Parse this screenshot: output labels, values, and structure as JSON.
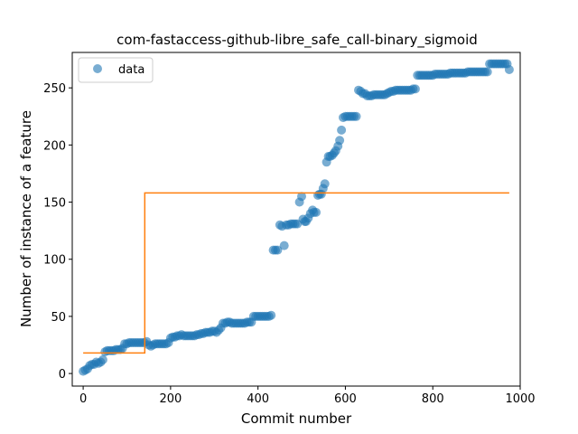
{
  "chart_data": {
    "type": "scatter",
    "title": "com-fastaccess-github-libre_safe_call-binary_sigmoid",
    "xlabel": "Commit number",
    "ylabel": "Number of instance of a feature",
    "xlim": [
      -25,
      1000
    ],
    "ylim": [
      -11,
      281
    ],
    "xticks": [
      0,
      200,
      400,
      600,
      800,
      1000
    ],
    "xtick_labels": [
      "0",
      "200",
      "400",
      "600",
      "800",
      "1000"
    ],
    "yticks": [
      0,
      50,
      100,
      150,
      200,
      250
    ],
    "ytick_labels": [
      "0",
      "50",
      "100",
      "150",
      "200",
      "250"
    ],
    "grid": false,
    "legend": {
      "position": "top-left",
      "entries": [
        "data"
      ]
    },
    "series": [
      {
        "name": "data",
        "kind": "scatter",
        "color": "#1f77b4",
        "alpha": 0.6,
        "points": [
          [
            0,
            2
          ],
          [
            5,
            3
          ],
          [
            10,
            4
          ],
          [
            15,
            7
          ],
          [
            20,
            8
          ],
          [
            25,
            8
          ],
          [
            30,
            10
          ],
          [
            35,
            9
          ],
          [
            40,
            10
          ],
          [
            45,
            12
          ],
          [
            50,
            19
          ],
          [
            55,
            20
          ],
          [
            60,
            20
          ],
          [
            65,
            20
          ],
          [
            70,
            20
          ],
          [
            75,
            21
          ],
          [
            80,
            21
          ],
          [
            85,
            21
          ],
          [
            90,
            22
          ],
          [
            95,
            26
          ],
          [
            100,
            26
          ],
          [
            105,
            27
          ],
          [
            110,
            27
          ],
          [
            115,
            27
          ],
          [
            120,
            27
          ],
          [
            125,
            27
          ],
          [
            130,
            27
          ],
          [
            135,
            27
          ],
          [
            140,
            27
          ],
          [
            145,
            28
          ],
          [
            150,
            25
          ],
          [
            155,
            24
          ],
          [
            160,
            25
          ],
          [
            165,
            26
          ],
          [
            170,
            26
          ],
          [
            175,
            26
          ],
          [
            180,
            26
          ],
          [
            185,
            26
          ],
          [
            190,
            26
          ],
          [
            195,
            27
          ],
          [
            200,
            31
          ],
          [
            205,
            32
          ],
          [
            210,
            32
          ],
          [
            215,
            33
          ],
          [
            220,
            33
          ],
          [
            225,
            34
          ],
          [
            230,
            33
          ],
          [
            235,
            33
          ],
          [
            240,
            33
          ],
          [
            245,
            33
          ],
          [
            250,
            33
          ],
          [
            255,
            33
          ],
          [
            260,
            34
          ],
          [
            265,
            34
          ],
          [
            270,
            35
          ],
          [
            275,
            35
          ],
          [
            280,
            36
          ],
          [
            285,
            36
          ],
          [
            290,
            36
          ],
          [
            295,
            37
          ],
          [
            300,
            37
          ],
          [
            305,
            36
          ],
          [
            310,
            38
          ],
          [
            315,
            40
          ],
          [
            320,
            44
          ],
          [
            325,
            44
          ],
          [
            330,
            45
          ],
          [
            335,
            45
          ],
          [
            340,
            44
          ],
          [
            345,
            44
          ],
          [
            350,
            44
          ],
          [
            355,
            44
          ],
          [
            360,
            44
          ],
          [
            365,
            44
          ],
          [
            370,
            44
          ],
          [
            375,
            45
          ],
          [
            380,
            45
          ],
          [
            385,
            45
          ],
          [
            390,
            50
          ],
          [
            395,
            50
          ],
          [
            400,
            50
          ],
          [
            405,
            50
          ],
          [
            410,
            50
          ],
          [
            415,
            50
          ],
          [
            420,
            50
          ],
          [
            425,
            50
          ],
          [
            430,
            51
          ],
          [
            435,
            108
          ],
          [
            440,
            108
          ],
          [
            445,
            108
          ],
          [
            450,
            130
          ],
          [
            455,
            129
          ],
          [
            460,
            112
          ],
          [
            465,
            130
          ],
          [
            470,
            130
          ],
          [
            475,
            131
          ],
          [
            480,
            131
          ],
          [
            485,
            131
          ],
          [
            490,
            131
          ],
          [
            495,
            150
          ],
          [
            500,
            155
          ],
          [
            503,
            135
          ],
          [
            507,
            133
          ],
          [
            510,
            133
          ],
          [
            515,
            136
          ],
          [
            520,
            140
          ],
          [
            525,
            143
          ],
          [
            528,
            141
          ],
          [
            533,
            141
          ],
          [
            537,
            156
          ],
          [
            541,
            157
          ],
          [
            545,
            157
          ],
          [
            549,
            162
          ],
          [
            553,
            166
          ],
          [
            557,
            185
          ],
          [
            561,
            190
          ],
          [
            565,
            190
          ],
          [
            570,
            191
          ],
          [
            574,
            193
          ],
          [
            578,
            195
          ],
          [
            583,
            199
          ],
          [
            587,
            204
          ],
          [
            591,
            213
          ],
          [
            595,
            224
          ],
          [
            600,
            225
          ],
          [
            605,
            225
          ],
          [
            610,
            225
          ],
          [
            615,
            225
          ],
          [
            620,
            225
          ],
          [
            625,
            225
          ],
          [
            630,
            248
          ],
          [
            635,
            247
          ],
          [
            640,
            245
          ],
          [
            645,
            245
          ],
          [
            650,
            243
          ],
          [
            655,
            243
          ],
          [
            660,
            243
          ],
          [
            665,
            244
          ],
          [
            670,
            244
          ],
          [
            675,
            244
          ],
          [
            680,
            244
          ],
          [
            685,
            244
          ],
          [
            690,
            244
          ],
          [
            695,
            245
          ],
          [
            700,
            246
          ],
          [
            705,
            247
          ],
          [
            710,
            247
          ],
          [
            715,
            248
          ],
          [
            720,
            248
          ],
          [
            725,
            248
          ],
          [
            730,
            248
          ],
          [
            735,
            248
          ],
          [
            740,
            248
          ],
          [
            745,
            248
          ],
          [
            750,
            248
          ],
          [
            755,
            249
          ],
          [
            760,
            249
          ],
          [
            765,
            261
          ],
          [
            770,
            261
          ],
          [
            775,
            261
          ],
          [
            780,
            261
          ],
          [
            785,
            261
          ],
          [
            790,
            261
          ],
          [
            795,
            261
          ],
          [
            800,
            261
          ],
          [
            805,
            262
          ],
          [
            810,
            262
          ],
          [
            815,
            262
          ],
          [
            820,
            262
          ],
          [
            825,
            262
          ],
          [
            830,
            262
          ],
          [
            835,
            262
          ],
          [
            840,
            263
          ],
          [
            845,
            263
          ],
          [
            850,
            263
          ],
          [
            855,
            263
          ],
          [
            860,
            263
          ],
          [
            865,
            263
          ],
          [
            870,
            263
          ],
          [
            875,
            263
          ],
          [
            880,
            264
          ],
          [
            885,
            264
          ],
          [
            890,
            264
          ],
          [
            895,
            264
          ],
          [
            900,
            264
          ],
          [
            905,
            264
          ],
          [
            910,
            264
          ],
          [
            915,
            264
          ],
          [
            920,
            264
          ],
          [
            925,
            264
          ],
          [
            930,
            271
          ],
          [
            935,
            271
          ],
          [
            940,
            271
          ],
          [
            945,
            271
          ],
          [
            950,
            271
          ],
          [
            955,
            271
          ],
          [
            960,
            271
          ],
          [
            965,
            271
          ],
          [
            970,
            271
          ],
          [
            975,
            266
          ]
        ]
      },
      {
        "name": "",
        "kind": "line",
        "color": "#ff7f0e",
        "points": [
          [
            0,
            18
          ],
          [
            141,
            18
          ],
          [
            141,
            158
          ],
          [
            975,
            158
          ]
        ]
      }
    ]
  }
}
